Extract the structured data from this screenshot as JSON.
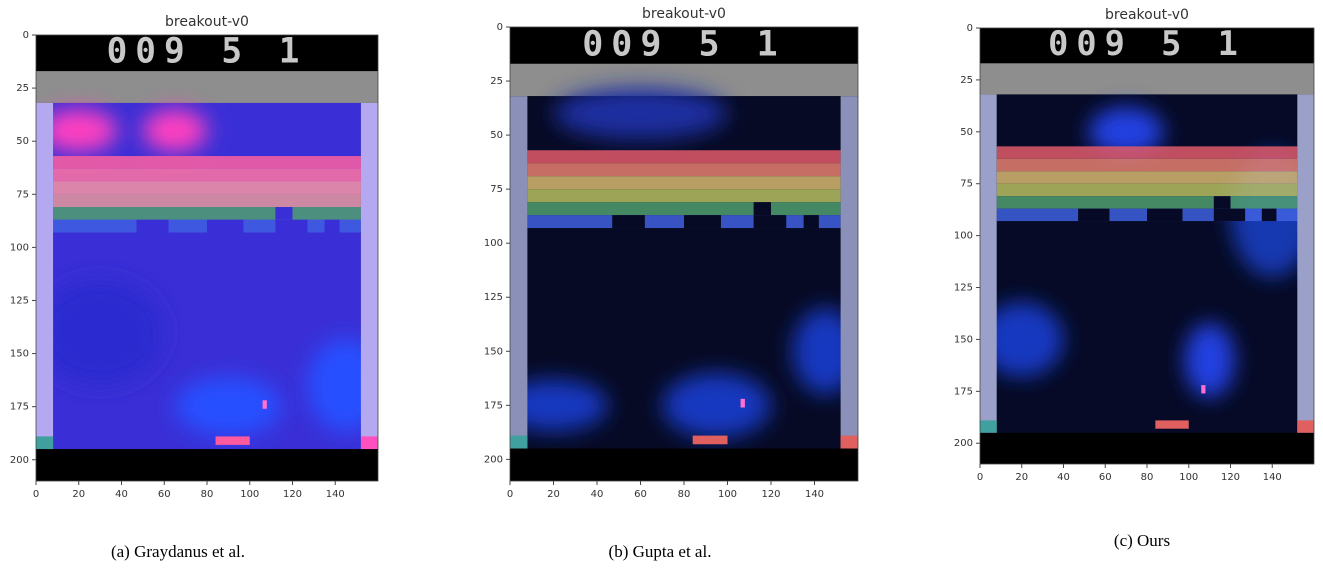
{
  "panels": [
    {
      "title": "breakout-v0",
      "score": "009 5 1",
      "caption": "(a)   Graydanus et al.",
      "xlim": [
        0,
        160
      ],
      "ylim": [
        0,
        210
      ],
      "xticks": [
        0,
        20,
        40,
        60,
        80,
        100,
        120,
        140
      ],
      "yticks": [
        0,
        25,
        50,
        75,
        100,
        125,
        150,
        175,
        200
      ]
    },
    {
      "title": "breakout-v0",
      "score": "009 5 1",
      "caption": "(b)   Gupta et al.",
      "xlim": [
        0,
        160
      ],
      "ylim": [
        0,
        210
      ],
      "xticks": [
        0,
        20,
        40,
        60,
        80,
        100,
        120,
        140
      ],
      "yticks": [
        0,
        25,
        50,
        75,
        100,
        125,
        150,
        175,
        200
      ]
    },
    {
      "title": "breakout-v0",
      "score": "009 5 1",
      "caption": "(c)   Ours",
      "xlim": [
        0,
        160
      ],
      "ylim": [
        0,
        210
      ],
      "xticks": [
        0,
        20,
        40,
        60,
        80,
        100,
        120,
        140
      ],
      "yticks": [
        0,
        25,
        50,
        75,
        100,
        125,
        150,
        175,
        200
      ]
    }
  ]
}
